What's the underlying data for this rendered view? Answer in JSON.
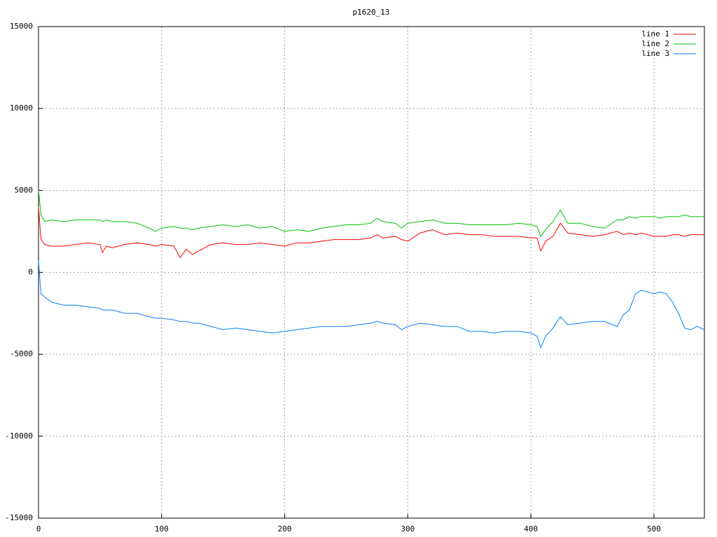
{
  "chart_data": {
    "type": "line",
    "title": "p1620_13",
    "x": [
      0,
      2,
      5,
      10,
      20,
      30,
      40,
      50,
      52,
      55,
      60,
      70,
      80,
      90,
      95,
      100,
      110,
      115,
      120,
      125,
      130,
      140,
      150,
      160,
      170,
      180,
      190,
      200,
      210,
      220,
      230,
      240,
      250,
      260,
      270,
      275,
      280,
      290,
      295,
      300,
      310,
      320,
      330,
      340,
      350,
      360,
      370,
      380,
      390,
      400,
      405,
      408,
      412,
      418,
      424,
      430,
      440,
      450,
      460,
      470,
      475,
      480,
      485,
      490,
      500,
      505,
      510,
      515,
      520,
      525,
      530,
      535,
      541
    ],
    "series": [
      {
        "name": "line 1",
        "color": "#ff0000",
        "values": [
          4000,
          2000,
          1700,
          1600,
          1600,
          1700,
          1800,
          1700,
          1200,
          1600,
          1500,
          1700,
          1800,
          1700,
          1600,
          1700,
          1600,
          900,
          1400,
          1100,
          1300,
          1700,
          1800,
          1700,
          1700,
          1800,
          1700,
          1600,
          1800,
          1800,
          1900,
          2000,
          2000,
          2000,
          2100,
          2300,
          2100,
          2200,
          2000,
          1900,
          2400,
          2600,
          2300,
          2400,
          2300,
          2300,
          2200,
          2200,
          2200,
          2100,
          2100,
          1300,
          1900,
          2200,
          3000,
          2400,
          2300,
          2200,
          2300,
          2500,
          2300,
          2400,
          2300,
          2400,
          2200,
          2200,
          2200,
          2300,
          2300,
          2200,
          2300,
          2300,
          2300
        ]
      },
      {
        "name": "line 2",
        "color": "#00c000",
        "values": [
          5000,
          3500,
          3100,
          3200,
          3100,
          3200,
          3200,
          3200,
          3100,
          3200,
          3100,
          3100,
          3000,
          2700,
          2500,
          2700,
          2800,
          2700,
          2700,
          2600,
          2700,
          2800,
          2900,
          2800,
          2900,
          2700,
          2800,
          2500,
          2600,
          2500,
          2700,
          2800,
          2900,
          2900,
          3000,
          3300,
          3100,
          3000,
          2700,
          3000,
          3100,
          3200,
          3000,
          3000,
          2900,
          2900,
          2900,
          2900,
          3000,
          2900,
          2800,
          2200,
          2600,
          3100,
          3800,
          3000,
          3000,
          2800,
          2700,
          3200,
          3200,
          3400,
          3300,
          3400,
          3400,
          3300,
          3400,
          3400,
          3400,
          3500,
          3400,
          3400,
          3400
        ]
      },
      {
        "name": "line 3",
        "color": "#0080ff",
        "values": [
          700,
          -1300,
          -1500,
          -1800,
          -2000,
          -2000,
          -2100,
          -2200,
          -2300,
          -2300,
          -2300,
          -2500,
          -2500,
          -2700,
          -2800,
          -2800,
          -2900,
          -3000,
          -3000,
          -3100,
          -3100,
          -3300,
          -3500,
          -3400,
          -3500,
          -3600,
          -3700,
          -3600,
          -3500,
          -3400,
          -3300,
          -3300,
          -3300,
          -3200,
          -3100,
          -3000,
          -3100,
          -3200,
          -3500,
          -3300,
          -3100,
          -3200,
          -3300,
          -3300,
          -3600,
          -3600,
          -3700,
          -3600,
          -3600,
          -3700,
          -3900,
          -4600,
          -3900,
          -3400,
          -2700,
          -3200,
          -3100,
          -3000,
          -3000,
          -3300,
          -2600,
          -2300,
          -1300,
          -1100,
          -1300,
          -1200,
          -1300,
          -1800,
          -2500,
          -3400,
          -3500,
          -3300,
          -3500
        ]
      }
    ],
    "xlim": [
      0,
      541
    ],
    "ylim": [
      -15000,
      15000
    ],
    "xticks": [
      0,
      100,
      200,
      300,
      400,
      500
    ],
    "yticks": [
      -15000,
      -10000,
      -5000,
      0,
      5000,
      10000,
      15000
    ],
    "grid": true,
    "legend": "top-right"
  }
}
